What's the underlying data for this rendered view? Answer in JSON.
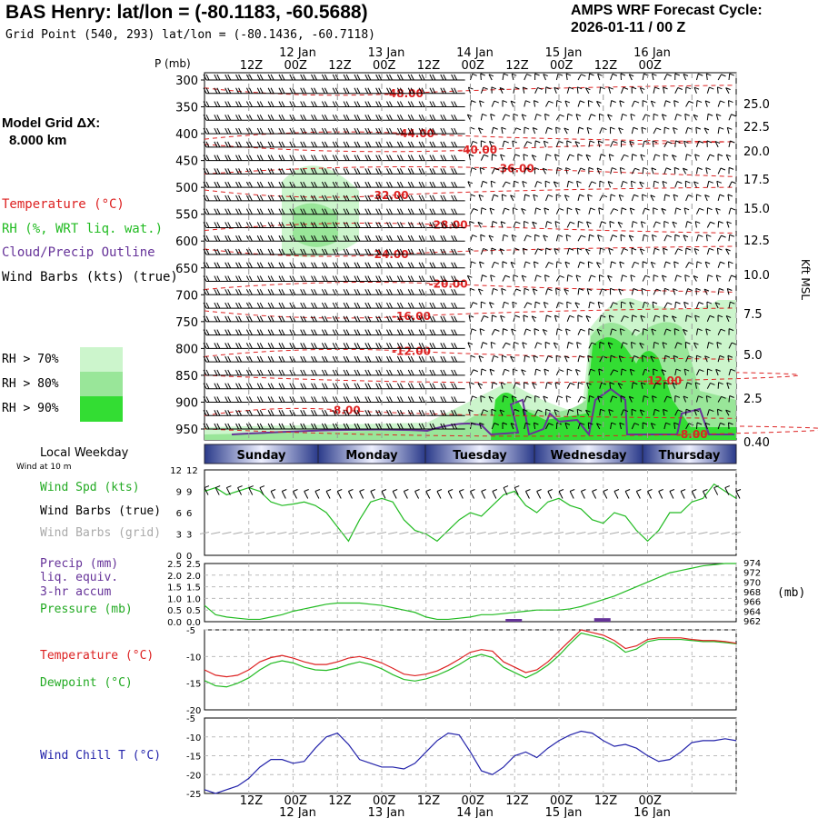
{
  "header": {
    "title": "BAS Henry:  lat/lon = (-80.1183, -60.5688)",
    "subtitle": "Grid Point (540, 293) lat/lon = (-80.1436, -60.7118)",
    "cycle_line1": "AMPS WRF Forecast Cycle:",
    "cycle_line2": "2026-01-11 / 00  Z",
    "model_grid_line1": "Model Grid ΔX:",
    "model_grid_line2": "8.000 km"
  },
  "legend": {
    "temperature": "Temperature (°C)",
    "rh": "RH (%, WRT liq. wat.)",
    "cloud": "Cloud/Precip Outline",
    "wind": "Wind Barbs (kts) (true)",
    "rh70": "RH > 70%",
    "rh80": "RH > 80%",
    "rh90": "RH > 90%",
    "colors": {
      "temperature": "#dd2222",
      "rh": "#22bb22",
      "cloud": "#663399",
      "rh70": "#ccf5cc",
      "rh80": "#99e699",
      "rh90": "#33dd33"
    }
  },
  "time_axis": {
    "top_hours": [
      "12Z",
      "00Z",
      "12Z",
      "00Z",
      "12Z",
      "00Z",
      "12Z",
      "00Z",
      "12Z",
      "00Z"
    ],
    "top_dates": [
      "12 Jan",
      "13 Jan",
      "14 Jan",
      "15 Jan",
      "16 Jan"
    ],
    "bottom_hours": [
      "12Z",
      "00Z",
      "12Z",
      "00Z",
      "12Z",
      "00Z",
      "12Z",
      "00Z",
      "12Z",
      "00Z"
    ],
    "bottom_dates": [
      "12 Jan",
      "13 Jan",
      "14 Jan",
      "15 Jan",
      "16 Jan"
    ],
    "pressure_axis_title": "P (mb)",
    "height_axis_title": "Kft MSL"
  },
  "weekday_bar": {
    "label": "Local Weekday",
    "sublabel": "Wind at 10 m",
    "days": [
      "Sunday",
      "Monday",
      "Tuesday",
      "Wednesday",
      "Thursday"
    ]
  },
  "panels": {
    "wind": {
      "label1": "Wind Spd (kts)",
      "label2": "Wind Barbs (true)",
      "label3": "Wind Barbs (grid)"
    },
    "precip": {
      "label1": "Precip (mm)",
      "label2": "liq. equiv.",
      "label3": "3-hr accum",
      "label4": "Pressure (mb)",
      "right_unit": "(mb)"
    },
    "temp": {
      "label1": "Temperature (°C)",
      "label2": "Dewpoint (°C)"
    },
    "chill": {
      "label1": "Wind Chill T (°C)"
    }
  },
  "chart_data": [
    {
      "type": "heatmap",
      "description_of_panel": "cross-section",
      "y_pressure_ticks": [
        300,
        350,
        400,
        450,
        500,
        550,
        600,
        650,
        700,
        750,
        800,
        850,
        900,
        950
      ],
      "y_height_ticks": [
        "25.0",
        "22.5",
        "20.0",
        "17.5",
        "15.0",
        "12.5",
        "10.0",
        "7.5",
        "5.0",
        "2.5",
        "0.40"
      ],
      "temperature_contours": [
        {
          "label": "-48.00",
          "p": 325,
          "x_hour": 54
        },
        {
          "label": "-44.00",
          "p": 400,
          "x_hour": 57
        },
        {
          "label": "-40.00",
          "p": 430,
          "x_hour": 74
        },
        {
          "label": "-36.00",
          "p": 465,
          "x_hour": 84
        },
        {
          "label": "-32.00",
          "p": 515,
          "x_hour": 50
        },
        {
          "label": "-28.00",
          "p": 570,
          "x_hour": 66
        },
        {
          "label": "-24.00",
          "p": 625,
          "x_hour": 50
        },
        {
          "label": "-20.00",
          "p": 680,
          "x_hour": 66
        },
        {
          "label": "-16.00",
          "p": 740,
          "x_hour": 56
        },
        {
          "label": "-12.00",
          "p": 805,
          "x_hour": 56
        },
        {
          "label": "-12.00",
          "p": 860,
          "x_hour": 124
        },
        {
          "label": "-8.00",
          "p": 915,
          "x_hour": 38
        },
        {
          "label": "-8.00",
          "p": 960,
          "x_hour": 132
        }
      ],
      "legend": [
        "Temperature (°C)",
        "RH (%, WRT liq. wat.)",
        "Cloud/Precip Outline",
        "Wind Barbs (kts) (true)"
      ]
    },
    {
      "type": "line",
      "title": "Wind Spd (kts)",
      "ylim": [
        0,
        12
      ],
      "yticks": [
        0,
        3,
        6,
        9,
        12
      ],
      "x_hours": [
        0,
        3,
        6,
        9,
        12,
        15,
        18,
        21,
        24,
        27,
        30,
        33,
        36,
        39,
        42,
        45,
        48,
        51,
        54,
        57,
        60,
        63,
        66,
        69,
        72,
        75,
        78,
        81,
        84,
        87,
        90,
        93,
        96,
        99,
        102,
        105,
        108,
        111,
        114,
        117,
        120,
        123,
        126,
        129,
        132,
        135,
        138,
        141,
        144
      ],
      "series": [
        {
          "name": "Wind Spd (kts)",
          "values": [
            9,
            9.5,
            8.5,
            9,
            9.5,
            9,
            7.5,
            7,
            7.2,
            7.5,
            7,
            6,
            4,
            2,
            5,
            7.5,
            8,
            7.5,
            5,
            3.5,
            3,
            2,
            3.5,
            5,
            6,
            5.5,
            7,
            8.5,
            9,
            7,
            6,
            7.5,
            8,
            7,
            6.5,
            5,
            4.5,
            6,
            5.5,
            3.5,
            2,
            3.5,
            6,
            6,
            7.5,
            8,
            10,
            9,
            8
          ]
        }
      ]
    },
    {
      "type": "line",
      "title": "Precip / Pressure",
      "ylim": [
        0,
        2.5
      ],
      "yticks": [
        "0.0",
        "0.5",
        "1.0",
        "1.5",
        "2.0",
        "2.5"
      ],
      "right_ticks": [
        962,
        964,
        966,
        968,
        970,
        972,
        974
      ],
      "series": [
        {
          "name": "Pressure (mb)",
          "values": [
            0.7,
            0.3,
            0.2,
            0.15,
            0.1,
            0.1,
            0.2,
            0.3,
            0.45,
            0.55,
            0.65,
            0.75,
            0.8,
            0.8,
            0.8,
            0.75,
            0.7,
            0.6,
            0.5,
            0.4,
            0.2,
            0.1,
            0.1,
            0.15,
            0.2,
            0.3,
            0.3,
            0.35,
            0.4,
            0.45,
            0.5,
            0.5,
            0.5,
            0.55,
            0.65,
            0.8,
            0.95,
            1.1,
            1.3,
            1.5,
            1.7,
            1.9,
            2.1,
            2.2,
            2.3,
            2.4,
            2.45,
            2.5,
            2.5
          ]
        },
        {
          "name": "Precip (mm)",
          "bars": [
            {
              "x_hour": 84,
              "value": 0.05
            },
            {
              "x_hour": 108,
              "value": 0.15
            }
          ]
        }
      ]
    },
    {
      "type": "line",
      "title": "Temperature / Dewpoint",
      "ylim": [
        -20,
        -5
      ],
      "yticks": [
        -20,
        -15,
        -10,
        -5
      ],
      "series": [
        {
          "name": "Temperature (°C)",
          "values": [
            -12.5,
            -13.5,
            -13.8,
            -13.5,
            -12.5,
            -11,
            -10.2,
            -9.8,
            -10.3,
            -11,
            -11.5,
            -11.5,
            -11,
            -10.3,
            -10,
            -10.5,
            -11.2,
            -12.2,
            -13.3,
            -13.6,
            -13.3,
            -12.7,
            -11.7,
            -10.5,
            -9.2,
            -8.7,
            -9,
            -11,
            -12,
            -13,
            -12.5,
            -11,
            -9,
            -7,
            -5,
            -5.5,
            -6,
            -7,
            -8.5,
            -8,
            -6.8,
            -6.5,
            -6.5,
            -6.5,
            -6.8,
            -7,
            -7,
            -7.2,
            -7.5
          ]
        },
        {
          "name": "Dewpoint (°C)",
          "values": [
            -14.5,
            -15.5,
            -15.7,
            -15,
            -14,
            -12.5,
            -11.3,
            -10.8,
            -11.2,
            -12,
            -12.5,
            -12.6,
            -12.2,
            -11.5,
            -11,
            -11.5,
            -12.3,
            -13.4,
            -14.3,
            -14.6,
            -14.2,
            -13.5,
            -12.6,
            -11.5,
            -10.2,
            -9.6,
            -10.2,
            -12,
            -13,
            -14,
            -13,
            -11.6,
            -9.8,
            -7.6,
            -5.6,
            -6.1,
            -6.6,
            -7.6,
            -9.2,
            -8.6,
            -7.2,
            -6.8,
            -6.8,
            -6.8,
            -7,
            -7.2,
            -7.2,
            -7.4,
            -7.6
          ]
        }
      ]
    },
    {
      "type": "line",
      "title": "Wind Chill T (°C)",
      "ylim": [
        -25,
        -5
      ],
      "yticks": [
        -25,
        -20,
        -15,
        -10,
        -5
      ],
      "series": [
        {
          "name": "Wind Chill T (°C)",
          "values": [
            -24,
            -25,
            -24,
            -23,
            -21,
            -18,
            -16,
            -16,
            -17,
            -16.5,
            -13,
            -10,
            -9,
            -12,
            -16,
            -17,
            -18,
            -18,
            -18.5,
            -17,
            -14,
            -11,
            -9,
            -9.5,
            -14,
            -19,
            -20,
            -18,
            -15,
            -14,
            -15.5,
            -13,
            -11,
            -9.5,
            -8.5,
            -9,
            -11,
            -12.5,
            -12,
            -13,
            -15,
            -16.5,
            -16,
            -14,
            -11.5,
            -11,
            -11,
            -10.5,
            -11
          ]
        }
      ]
    }
  ]
}
